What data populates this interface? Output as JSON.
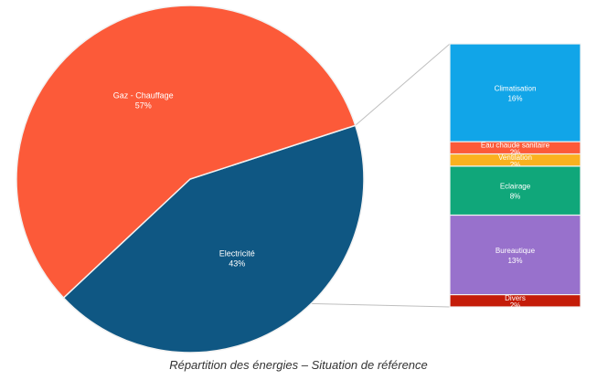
{
  "caption": "Répartition des énergies – Situation de référence",
  "chart_data": {
    "type": "bar-of-pie",
    "pie": {
      "slices": [
        {
          "name": "Electricité",
          "value_text": "43%",
          "value": 43,
          "color": "#0f5783"
        },
        {
          "name": "Gaz - Chauffage",
          "value_text": "57%",
          "value": 57,
          "color": "#fc5a39"
        }
      ]
    },
    "bar": {
      "segments": [
        {
          "name": "Climatisation",
          "value_text": "16%",
          "value": 16,
          "color": "#11a5e8"
        },
        {
          "name": "Eau chaude sanitaire",
          "value_text": "2%",
          "value": 2,
          "color": "#fc5a39"
        },
        {
          "name": "Ventilation",
          "value_text": "2%",
          "value": 2,
          "color": "#fbb11f"
        },
        {
          "name": "Eclairage",
          "value_text": "8%",
          "value": 8,
          "color": "#10a77a"
        },
        {
          "name": "Bureautique",
          "value_text": "13%",
          "value": 13,
          "color": "#9871cc"
        },
        {
          "name": "Divers",
          "value_text": "2%",
          "value": 2,
          "color": "#c41c08"
        }
      ]
    }
  }
}
